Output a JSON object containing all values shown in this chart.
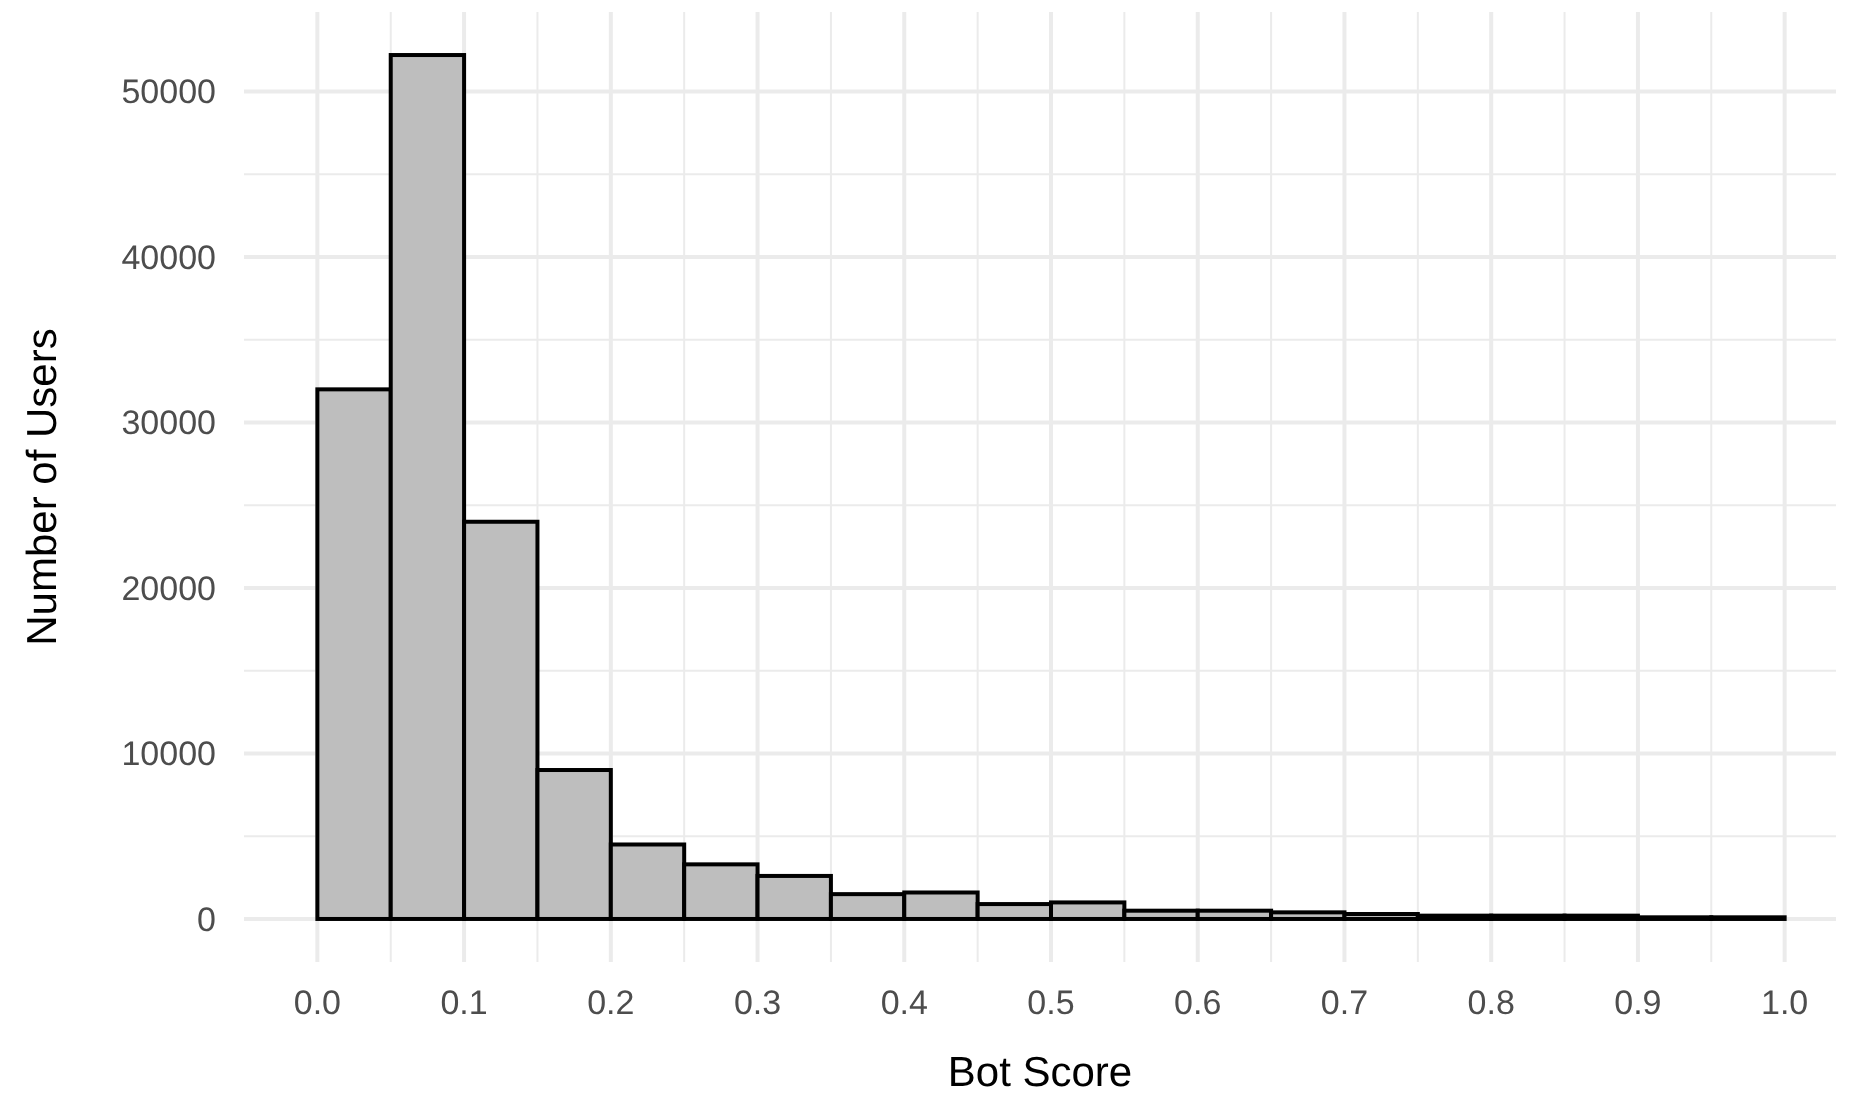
{
  "chart_data": {
    "type": "histogram",
    "xlabel": "Bot Score",
    "ylabel": "Number of Users",
    "bins": [
      0,
      0.05,
      0.1,
      0.15,
      0.2,
      0.25,
      0.3,
      0.35,
      0.4,
      0.45,
      0.5,
      0.55,
      0.6,
      0.65,
      0.7,
      0.75,
      0.8,
      0.85,
      0.9,
      0.95,
      1.0
    ],
    "values": [
      32000,
      52200,
      24000,
      9000,
      4500,
      3300,
      2600,
      1500,
      1600,
      900,
      1000,
      500,
      500,
      400,
      300,
      200,
      200,
      200,
      100,
      100
    ],
    "color": "#bebebe",
    "xlim": [
      -0.05,
      1.035
    ],
    "xticks": [
      {
        "value": 0,
        "label": "0.0"
      },
      0.1,
      0.2,
      0.3,
      0.4,
      0.5,
      0.6,
      0.7,
      0.8,
      0.9,
      {
        "value": 1,
        "label": "1.0"
      }
    ],
    "ylim": [
      -2600,
      54800
    ],
    "yticks": [
      0,
      10000,
      20000,
      30000,
      40000,
      50000
    ],
    "grid": true
  }
}
